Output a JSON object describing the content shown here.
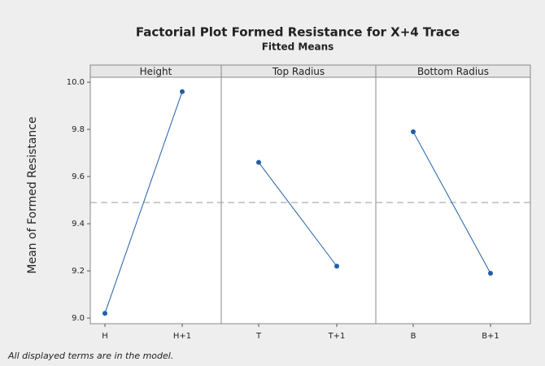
{
  "title": "Factorial Plot Formed Resistance for X+4 Trace",
  "subtitle": "Fitted Means",
  "y_label": "Mean of Formed Resistance",
  "footnote": "All displayed terms are in the model.",
  "reference_line": 9.49,
  "chart_data": [
    {
      "type": "line",
      "title": "Height",
      "categories": [
        "H",
        "H+1"
      ],
      "values": [
        9.02,
        9.96
      ],
      "color": "#1f5fa8",
      "ylim": [
        8.976,
        10.021
      ],
      "yticks": [
        {
          "value": 9.0,
          "label": "9.0"
        },
        9.2,
        9.4,
        9.6,
        9.8,
        {
          "value": 10.0,
          "label": "10.0"
        }
      ]
    },
    {
      "type": "line",
      "title": "Top Radius",
      "categories": [
        "T",
        "T+1"
      ],
      "values": [
        9.66,
        9.22
      ],
      "color": "#1f5fa8",
      "ylim": [
        8.976,
        10.021
      ]
    },
    {
      "type": "line",
      "title": "Bottom Radius",
      "categories": [
        "B",
        "B+1"
      ],
      "values": [
        9.79,
        9.19
      ],
      "color": "#1f5fa8",
      "ylim": [
        8.976,
        10.021
      ]
    }
  ]
}
